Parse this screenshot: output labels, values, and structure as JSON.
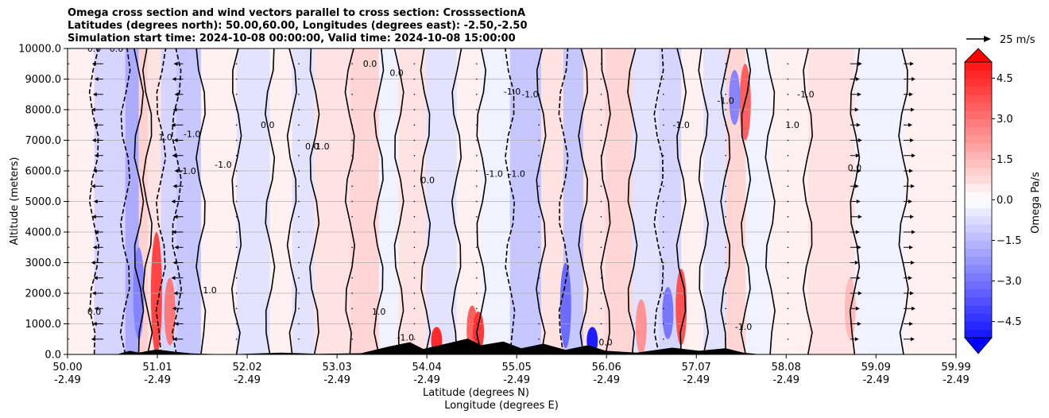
{
  "chart_data": {
    "type": "heatmap",
    "title_lines": [
      "Omega cross section and wind vectors parallel to cross section: CrosssectionA",
      "Latitudes (degrees north): 50.00,60.00, Longitudes (degrees east): -2.50,-2.50",
      "Simulation start time: 2024-10-08 00:00:00, Valid time: 2024-10-08 15:00:00"
    ],
    "ylabel": "Altitude (meters)",
    "xlabel_lines": [
      "Latitude (degrees N)",
      "Longitude (degrees E)"
    ],
    "ylim": [
      0,
      10000
    ],
    "xlim": [
      50.0,
      59.99
    ],
    "y_ticks": [
      {
        "value": 0,
        "label": "0.0"
      },
      {
        "value": 1000,
        "label": "1000.0"
      },
      {
        "value": 2000,
        "label": "2000.0"
      },
      {
        "value": 3000,
        "label": "3000.0"
      },
      {
        "value": 4000,
        "label": "4000.0"
      },
      {
        "value": 5000,
        "label": "5000.0"
      },
      {
        "value": 6000,
        "label": "6000.0"
      },
      {
        "value": 7000,
        "label": "7000.0"
      },
      {
        "value": 8000,
        "label": "8000.0"
      },
      {
        "value": 9000,
        "label": "9000.0"
      },
      {
        "value": 10000,
        "label": "10000.0"
      }
    ],
    "x_ticks": [
      {
        "value": 50.0,
        "lat": "50.00",
        "lon": "-2.49"
      },
      {
        "value": 51.01,
        "lat": "51.01",
        "lon": "-2.49"
      },
      {
        "value": 52.02,
        "lat": "52.02",
        "lon": "-2.49"
      },
      {
        "value": 53.03,
        "lat": "53.03",
        "lon": "-2.49"
      },
      {
        "value": 54.04,
        "lat": "54.04",
        "lon": "-2.49"
      },
      {
        "value": 55.05,
        "lat": "55.05",
        "lon": "-2.49"
      },
      {
        "value": 56.06,
        "lat": "56.06",
        "lon": "-2.49"
      },
      {
        "value": 57.07,
        "lat": "57.07",
        "lon": "-2.49"
      },
      {
        "value": 58.08,
        "lat": "58.08",
        "lon": "-2.49"
      },
      {
        "value": 59.09,
        "lat": "59.09",
        "lon": "-2.49"
      },
      {
        "value": 59.99,
        "lat": "59.99",
        "lon": "-2.49"
      }
    ],
    "grid": "horizontal",
    "colorbar": {
      "label": "Omega Pa/s",
      "range": [
        -5.1,
        5.1
      ],
      "step": 0.3,
      "tick_values": [
        -4.5,
        -3.0,
        -1.5,
        0.0,
        1.5,
        3.0,
        4.5
      ],
      "tick_labels": [
        "−4.5",
        "−3.0",
        "−1.5",
        "0.0",
        "1.5",
        "3.0",
        "4.5"
      ],
      "extend": "both",
      "cmap": "bwr"
    },
    "wind_key": {
      "value": 25,
      "label": "25 m/s"
    },
    "omega_bands": [
      {
        "lat": 50.05,
        "omega": 0.3
      },
      {
        "lat": 50.55,
        "omega": -0.9
      },
      {
        "lat": 50.75,
        "omega": -1.8
      },
      {
        "lat": 50.85,
        "omega": 1.0
      },
      {
        "lat": 50.95,
        "omega": 0.6
      },
      {
        "lat": 51.15,
        "omega": -0.9
      },
      {
        "lat": 51.3,
        "omega": -1.2
      },
      {
        "lat": 51.7,
        "omega": 0.3
      },
      {
        "lat": 52.1,
        "omega": -0.6
      },
      {
        "lat": 52.45,
        "omega": 0.3
      },
      {
        "lat": 52.6,
        "omega": -0.6
      },
      {
        "lat": 52.95,
        "omega": 0.6
      },
      {
        "lat": 53.4,
        "omega": 0.9
      },
      {
        "lat": 53.6,
        "omega": -0.3
      },
      {
        "lat": 53.85,
        "omega": 0.6
      },
      {
        "lat": 54.2,
        "omega": -0.6
      },
      {
        "lat": 54.55,
        "omega": 0.3
      },
      {
        "lat": 54.75,
        "omega": -0.3
      },
      {
        "lat": 55.2,
        "omega": -1.2
      },
      {
        "lat": 55.45,
        "omega": 0.6
      },
      {
        "lat": 55.7,
        "omega": -1.2
      },
      {
        "lat": 55.9,
        "omega": 0.6
      },
      {
        "lat": 56.2,
        "omega": 0.9
      },
      {
        "lat": 56.5,
        "omega": -0.6
      },
      {
        "lat": 56.8,
        "omega": -0.9
      },
      {
        "lat": 57.0,
        "omega": 0.3
      },
      {
        "lat": 57.3,
        "omega": -0.6
      },
      {
        "lat": 57.5,
        "omega": 0.9
      },
      {
        "lat": 57.75,
        "omega": -0.3
      },
      {
        "lat": 58.05,
        "omega": 0.3
      },
      {
        "lat": 58.6,
        "omega": 0.6
      },
      {
        "lat": 59.1,
        "omega": -0.3
      },
      {
        "lat": 59.7,
        "omega": 0.3
      }
    ],
    "omega_cells": [
      {
        "lat": 51.0,
        "z0": 0,
        "z1": 4000,
        "omega": 4.2
      },
      {
        "lat": 51.15,
        "z0": 300,
        "z1": 2500,
        "omega": 3.0
      },
      {
        "lat": 50.8,
        "z0": 500,
        "z1": 3500,
        "omega": -2.7
      },
      {
        "lat": 54.15,
        "z0": 0,
        "z1": 900,
        "omega": 4.8
      },
      {
        "lat": 54.55,
        "z0": 0,
        "z1": 1600,
        "omega": 3.6
      },
      {
        "lat": 54.62,
        "z0": 100,
        "z1": 1400,
        "omega": 4.5
      },
      {
        "lat": 55.6,
        "z0": 200,
        "z1": 3000,
        "omega": -3.3
      },
      {
        "lat": 55.9,
        "z0": 0,
        "z1": 900,
        "omega": -5.4
      },
      {
        "lat": 56.45,
        "z0": 0,
        "z1": 1800,
        "omega": 2.4
      },
      {
        "lat": 56.9,
        "z0": 300,
        "z1": 2800,
        "omega": 3.9
      },
      {
        "lat": 56.75,
        "z0": 500,
        "z1": 2200,
        "omega": -3.0
      },
      {
        "lat": 57.62,
        "z0": 7000,
        "z1": 9500,
        "omega": 3.6
      },
      {
        "lat": 57.5,
        "z0": 7500,
        "z1": 9300,
        "omega": -2.7
      },
      {
        "lat": 58.8,
        "z0": 500,
        "z1": 2500,
        "omega": 1.5
      }
    ],
    "contour_labels": [
      {
        "lat": 50.3,
        "z": 9900,
        "text": "0.0"
      },
      {
        "lat": 50.55,
        "z": 9900,
        "text": "0.0"
      },
      {
        "lat": 51.1,
        "z": 7000,
        "text": "1.0"
      },
      {
        "lat": 51.4,
        "z": 7100,
        "text": "-1.0"
      },
      {
        "lat": 51.35,
        "z": 5900,
        "text": "-1.0"
      },
      {
        "lat": 51.75,
        "z": 6100,
        "text": "-1.0"
      },
      {
        "lat": 52.25,
        "z": 7400,
        "text": "0.0"
      },
      {
        "lat": 52.75,
        "z": 6700,
        "text": "0.0"
      },
      {
        "lat": 52.85,
        "z": 6700,
        "text": "-1.0"
      },
      {
        "lat": 53.4,
        "z": 9400,
        "text": "0.0"
      },
      {
        "lat": 53.7,
        "z": 9100,
        "text": "0.0"
      },
      {
        "lat": 54.05,
        "z": 5600,
        "text": "0.0"
      },
      {
        "lat": 55.0,
        "z": 8500,
        "text": "-1.0"
      },
      {
        "lat": 55.2,
        "z": 8400,
        "text": "-1.0"
      },
      {
        "lat": 54.8,
        "z": 5800,
        "text": "-1.0"
      },
      {
        "lat": 55.05,
        "z": 5800,
        "text": "-1.0"
      },
      {
        "lat": 56.9,
        "z": 7400,
        "text": "-1.0"
      },
      {
        "lat": 57.4,
        "z": 8200,
        "text": "-1.0"
      },
      {
        "lat": 58.3,
        "z": 8400,
        "text": "-1.0"
      },
      {
        "lat": 58.15,
        "z": 7400,
        "text": "1.0"
      },
      {
        "lat": 58.85,
        "z": 6000,
        "text": "0.0"
      },
      {
        "lat": 53.5,
        "z": 1300,
        "text": "1.0"
      },
      {
        "lat": 53.8,
        "z": 450,
        "text": "-1.0"
      },
      {
        "lat": 51.6,
        "z": 2000,
        "text": "1.0"
      },
      {
        "lat": 50.3,
        "z": 1300,
        "text": "0.0"
      },
      {
        "lat": 56.05,
        "z": 300,
        "text": "0.0"
      },
      {
        "lat": 57.6,
        "z": 800,
        "text": "-1.0"
      }
    ]
  }
}
